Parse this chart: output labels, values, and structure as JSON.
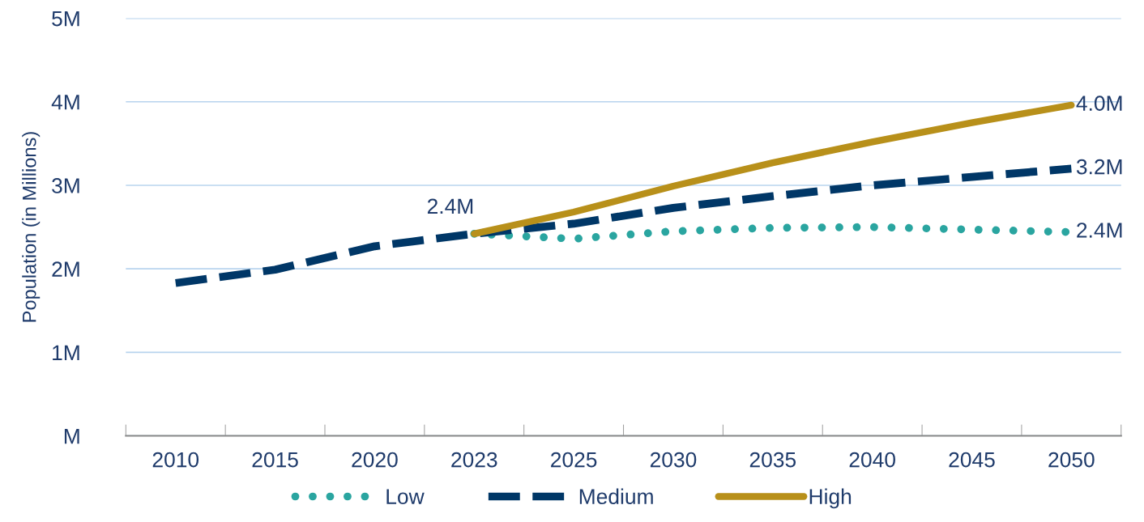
{
  "chart_data": {
    "type": "line",
    "ylabel": "Population (in Millions)",
    "categories": [
      "2010",
      "2015",
      "2020",
      "2023",
      "2025",
      "2030",
      "2035",
      "2040",
      "2045",
      "2050"
    ],
    "series": [
      {
        "name": "Low",
        "color": "#2aa5a0",
        "line_style": "dotted",
        "values": [
          null,
          null,
          null,
          2.42,
          2.36,
          2.45,
          2.49,
          2.5,
          2.47,
          2.44
        ],
        "value_labels": [
          null,
          null,
          null,
          null,
          null,
          null,
          null,
          null,
          null,
          "2.4M"
        ]
      },
      {
        "name": "Medium",
        "color": "#003767",
        "line_style": "dashed",
        "values": [
          1.83,
          1.99,
          2.27,
          2.42,
          2.54,
          2.73,
          2.87,
          3.0,
          3.1,
          3.2
        ],
        "value_labels": [
          null,
          null,
          null,
          null,
          null,
          null,
          null,
          null,
          null,
          "3.2M"
        ]
      },
      {
        "name": "High",
        "color": "#b8901a",
        "line_style": "solid",
        "values": [
          null,
          null,
          null,
          2.42,
          2.68,
          2.99,
          3.27,
          3.52,
          3.75,
          3.96
        ],
        "value_labels": [
          null,
          null,
          null,
          "2.4M",
          null,
          null,
          null,
          null,
          null,
          "4.0M"
        ]
      }
    ],
    "ylim": [
      0,
      5
    ],
    "yticks": [
      {
        "value": 0,
        "label": "M"
      },
      {
        "value": 1,
        "label": "1M"
      },
      {
        "value": 2,
        "label": "2M"
      },
      {
        "value": 3,
        "label": "3M"
      },
      {
        "value": 4,
        "label": "4M"
      },
      {
        "value": 5,
        "label": "5M"
      }
    ],
    "grid": "y",
    "legend": "bottom",
    "marker": "none"
  }
}
